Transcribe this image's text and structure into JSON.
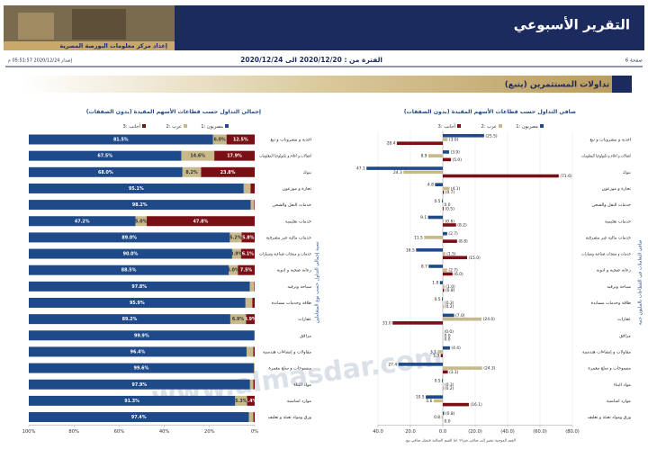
{
  "header": {
    "title": "التقرير الأسبوعي",
    "subtitle": "إعداد مركز معلومات البورصة المصرية"
  },
  "info": {
    "page": "صفحة 6",
    "period": "الفترة من : 2020/12/20 الى 2020/12/24",
    "issued": "إصدار 2020/12/24 05:51:57 م"
  },
  "section": {
    "title": "4. تداولات المستثمرين (يتبع)"
  },
  "watermark": "www.almasdar.com",
  "chart_data": [
    {
      "type": "bar",
      "orientation": "horizontal",
      "stacked": true,
      "title": "إجمالي التداول حسب قطاعات الأسهم المقيدة (بدون الصفقات)",
      "axis_title": "نسبة إجمالي التداول حسب نوع المتعاملين",
      "categories": [
        "اغذية و مشروبات و تبغ",
        "اتصالات و اعلام و تكنولوجيا المعلومات",
        "بنوك",
        "تجارة و موزعون",
        "خدمات النقل والشحن",
        "خدمات تعليمية",
        "خدمات مالية غير مصرفية",
        "خدمات و منتجات صناعية وسيارات",
        "رعاية صحية و ادوية",
        "سياحة وترفيه",
        "طاقة وخدمات مساندة",
        "عقارات",
        "مرافق",
        "مقاولات و إنشاءات هندسية",
        "منسوجات و سلع معمرة",
        "مواد البناء",
        "موارد اساسية",
        "ورق ومواد تعبئة و تغليف"
      ],
      "series": [
        {
          "name": "مصريون :1",
          "color": "#1f4a8a",
          "values": [
            81.5,
            67.5,
            68.0,
            95.1,
            98.2,
            47.2,
            89.0,
            90.0,
            88.5,
            97.8,
            95.9,
            89.2,
            99.9,
            96.4,
            99.6,
            97.9,
            91.3,
            97.4
          ],
          "value_labels": [
            "81.5%",
            "67.5%",
            "68.0%",
            "95.1%",
            "98.2%",
            "47.2%",
            "89.0%",
            "90.0%",
            "88.5%",
            "97.8%",
            "95.9%",
            "89.2%",
            "99.9%",
            "96.4%",
            "99.6%",
            "97.9%",
            "91.3%",
            "97.4%"
          ]
        },
        {
          "name": "عرب :2",
          "color": "#c8b98a",
          "values": [
            6.0,
            14.6,
            8.2,
            3.0,
            1.5,
            5.0,
            5.2,
            3.9,
            4.0,
            2.0,
            3.0,
            6.9,
            0.1,
            3.0,
            0.3,
            1.5,
            5.3,
            2.0
          ],
          "value_labels": [
            "6.0%",
            "14.6%",
            "8.2%",
            null,
            null,
            "5.0%",
            "5.2%",
            "3.9%",
            "4.0%",
            null,
            null,
            "6.9%",
            null,
            null,
            null,
            null,
            "5.3%",
            null
          ]
        },
        {
          "name": "أجانب :3",
          "color": "#7a1016",
          "values": [
            12.5,
            17.9,
            23.8,
            1.9,
            0.3,
            47.8,
            5.8,
            6.1,
            7.5,
            0.2,
            1.1,
            3.9,
            0.0,
            0.6,
            0.1,
            0.6,
            3.4,
            0.6
          ],
          "value_labels": [
            "12.5%",
            "17.9%",
            "23.8%",
            null,
            null,
            "47.8%",
            "5.8%",
            "6.1%",
            "7.5%",
            null,
            null,
            "3.9%",
            null,
            null,
            null,
            null,
            "3.4%",
            null
          ]
        }
      ],
      "xlim": [
        100,
        0
      ],
      "xticks": [
        {
          "value": 100,
          "label": "100%"
        },
        {
          "value": 80,
          "label": "80%"
        },
        {
          "value": 60,
          "label": "60%"
        },
        {
          "value": 40,
          "label": "40%"
        },
        {
          "value": 20,
          "label": "20%"
        },
        {
          "value": 0,
          "label": "0%"
        }
      ],
      "grid": false
    },
    {
      "type": "bar",
      "orientation": "horizontal",
      "stacked": false,
      "title": "صافي التداول حسب قطاعات الأسهم المقيدة (بدون الصفقات)",
      "axis_title": "صافي التعاملات في القطاعات بالمليون جنيه",
      "note": "القيم الموجبة تشير إلى صافي شراء؛ اما القيم السالبة فتمثل صافي بيع",
      "categories": [
        "اغذية و مشروبات و تبغ",
        "اتصالات و اعلام و تكنولوجيا المعلومات",
        "بنوك",
        "تجارة و موزعون",
        "خدمات النقل والشحن",
        "خدمات تعليمية",
        "خدمات مالية غير مصرفية",
        "خدمات و منتجات صناعية وسيارات",
        "رعاية صحية و ادوية",
        "سياحة وترفيه",
        "طاقة وخدمات مساندة",
        "عقارات",
        "مرافق",
        "مقاولات و إنشاءات هندسية",
        "منسوجات و سلع معمرة",
        "مواد البناء",
        "موارد اساسية",
        "ورق ومواد تعبئة و تغليف"
      ],
      "series": [
        {
          "name": "مصريون :1",
          "color": "#1f4a8a",
          "values": [
            -25.5,
            -3.9,
            47.1,
            4.8,
            0.5,
            9.1,
            -2.7,
            16.5,
            8.7,
            1.8,
            0.5,
            -7.0,
            0.0,
            -4.4,
            27.4,
            0.5,
            10.5,
            -0.8
          ],
          "value_labels": [
            "(25.5)",
            "(3.9)",
            "47.1",
            "4.8",
            "0.5",
            "9.1",
            "(2.7)",
            "16.5",
            "8.7",
            "1.8",
            "0.5",
            "(7.0)",
            "(0.0)",
            "(4.4)",
            "27.4",
            "0.5",
            "10.5",
            "(0.8)"
          ]
        },
        {
          "name": "عرب :2",
          "color": "#c8b98a",
          "values": [
            -3.0,
            8.9,
            24.3,
            -4.1,
            0.0,
            -0.6,
            11.5,
            -1.5,
            -2.7,
            -1.0,
            -0.3,
            -24.0,
            0.0,
            3.1,
            -24.3,
            -0.3,
            5.6,
            0.8
          ],
          "value_labels": [
            "(3.0)",
            "8.9",
            "24.3",
            "(4.1)",
            "0.0",
            "(0.6)",
            "11.5",
            "(1.5)",
            "(2.7)",
            "(1.0)",
            "(0.3)",
            "(24.0)",
            "0.0",
            "3.1",
            "(24.3)",
            "(0.3)",
            "5.6",
            "0.8"
          ]
        },
        {
          "name": "أجانب :3",
          "color": "#7a1016",
          "values": [
            28.4,
            -5.0,
            -71.6,
            -0.7,
            -0.5,
            -8.2,
            -8.8,
            -15.0,
            -6.0,
            -0.8,
            -0.2,
            31.0,
            0.0,
            1.3,
            -3.1,
            -0.2,
            -16.1,
            0.0
          ],
          "value_labels": [
            "28.4",
            "(5.0)",
            "(71.6)",
            "(0.7)",
            "(0.5)",
            "(8.2)",
            "(8.8)",
            "(15.0)",
            "(6.0)",
            "(0.8)",
            "(0.2)",
            "31.0",
            "0.0",
            "1.3",
            "(3.1)",
            "(0.2)",
            "(16.1)",
            "0.0"
          ]
        }
      ],
      "xlim": [
        40,
        -80
      ],
      "xticks": [
        {
          "value": 40,
          "label": "40.0"
        },
        {
          "value": 20,
          "label": "20.0"
        },
        {
          "value": 0,
          "label": "0.0"
        },
        {
          "value": -20,
          "label": "(20.0)"
        },
        {
          "value": -40,
          "label": "(40.0)"
        },
        {
          "value": -60,
          "label": "(60.0)"
        },
        {
          "value": -80,
          "label": "(80.0)"
        }
      ],
      "grid": true
    }
  ]
}
